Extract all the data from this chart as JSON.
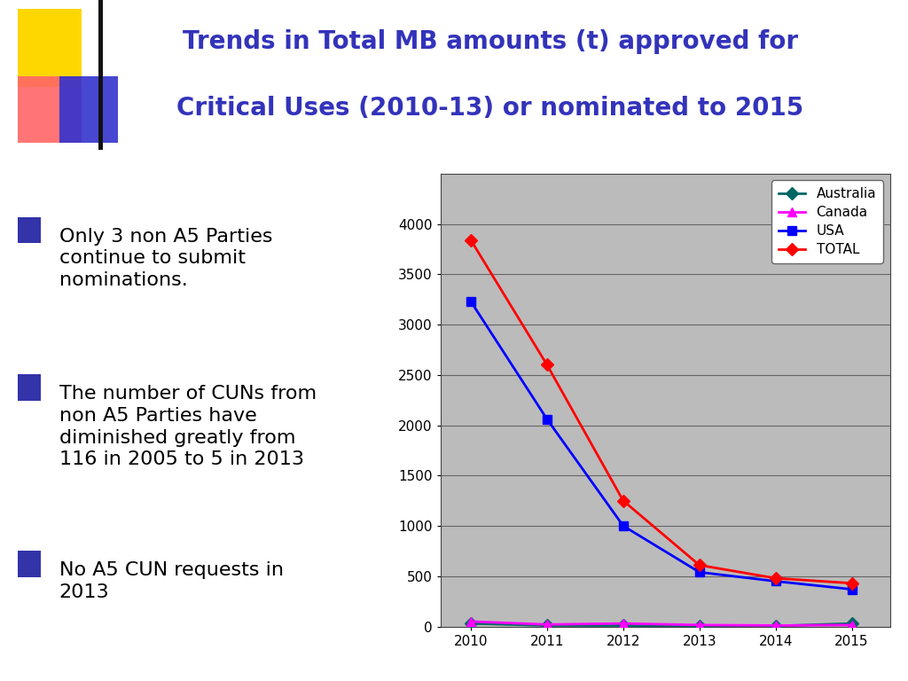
{
  "title_line1": "Trends in Total MB amounts (t) approved for",
  "title_line2": "Critical Uses (2010-13) or nominated to 2015",
  "title_color": "#3333BB",
  "title_fontsize": 20,
  "years": [
    2010,
    2011,
    2012,
    2013,
    2014,
    2015
  ],
  "series": {
    "Australia": {
      "values": [
        30,
        10,
        10,
        5,
        5,
        30
      ],
      "color": "#006666",
      "marker": "D",
      "linestyle": "-"
    },
    "Canada": {
      "values": [
        50,
        20,
        30,
        15,
        10,
        15
      ],
      "color": "#FF00FF",
      "marker": "^",
      "linestyle": "-"
    },
    "USA": {
      "values": [
        3230,
        2060,
        1000,
        540,
        450,
        370
      ],
      "color": "#0000FF",
      "marker": "s",
      "linestyle": "-"
    },
    "TOTAL": {
      "values": [
        3840,
        2600,
        1250,
        610,
        480,
        430
      ],
      "color": "#FF0000",
      "marker": "D",
      "linestyle": "-"
    }
  },
  "ylim": [
    0,
    4500
  ],
  "yticks": [
    0,
    500,
    1000,
    1500,
    2000,
    2500,
    3000,
    3500,
    4000
  ],
  "chart_bg": "#BBBBBB",
  "bg_color": "#FFFFFF",
  "bullet_color": "#3333AA",
  "bullet_fontsize": 16,
  "bullets": [
    "Only 3 non A5 Parties\ncontinue to submit\nnominations.",
    "The number of CUNs from\nnon A5 Parties have\ndiminished greatly from\n116 in 2005 to 5 in 2013",
    "No A5 CUN requests in\n2013"
  ],
  "legend_entries": [
    "Australia",
    "Canada",
    "USA",
    "TOTAL"
  ],
  "legend_colors": [
    "#006666",
    "#FF00FF",
    "#0000FF",
    "#FF0000"
  ],
  "legend_markers": [
    "D",
    "^",
    "s",
    "D"
  ]
}
